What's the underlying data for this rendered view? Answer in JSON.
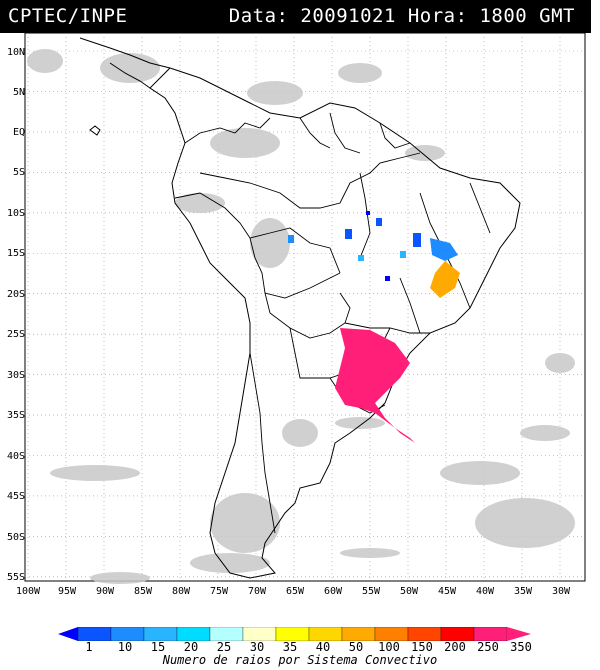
{
  "header": {
    "title": "CPTEC/INPE",
    "meta": "Data: 20091021 Hora: 1800 GMT"
  },
  "axes": {
    "y_labels": [
      "10N",
      "5N",
      "EQ",
      "5S",
      "10S",
      "15S",
      "20S",
      "25S",
      "30S",
      "35S",
      "40S",
      "45S",
      "50S",
      "55S"
    ],
    "x_labels": [
      "100W",
      "95W",
      "90W",
      "85W",
      "80W",
      "75W",
      "70W",
      "65W",
      "60W",
      "55W",
      "50W",
      "45W",
      "40W",
      "35W",
      "30W"
    ]
  },
  "colorbar": {
    "ticks": [
      "1",
      "10",
      "15",
      "20",
      "25",
      "30",
      "35",
      "40",
      "50",
      "100",
      "150",
      "200",
      "250",
      "350"
    ],
    "colors": [
      "#0000ff",
      "#0a55ff",
      "#1e8cff",
      "#28b4ff",
      "#00dcff",
      "#b4ffff",
      "#ffffc8",
      "#ffff00",
      "#ffd700",
      "#ffaa00",
      "#ff7f00",
      "#ff4500",
      "#ff0000",
      "#ff1e78"
    ],
    "title": "Numero de raios por Sistema Convectivo"
  },
  "map": {
    "coast_color": "#000000",
    "border_color": "#000000",
    "cloud_color": "#c8c8c8",
    "grid_color": "#999999"
  }
}
